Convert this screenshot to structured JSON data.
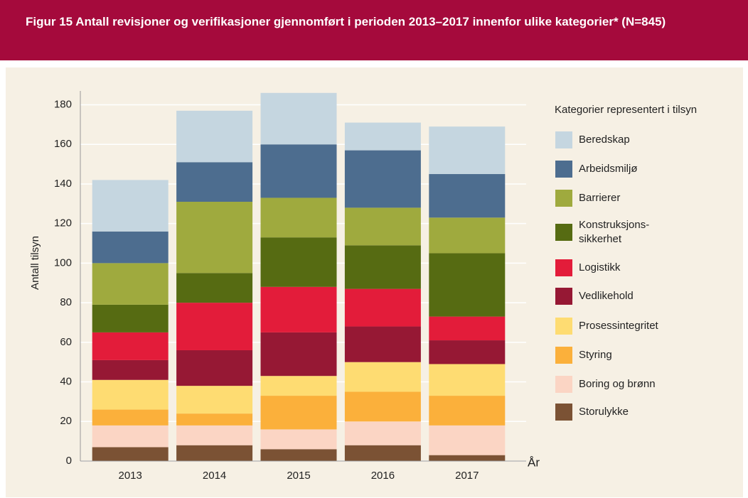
{
  "chart_data": {
    "type": "stacked-bar",
    "title": "Figur 15 Antall revisjoner og verifikasjoner gjennomført i perioden 2013–2017 innenfor ulike kategorier* (N=845)",
    "ylabel": "Antall tilsyn",
    "xlabel": "År",
    "legend_title": "Kategorier representert i tilsyn",
    "categories": [
      "2013",
      "2014",
      "2015",
      "2016",
      "2017"
    ],
    "ylim": [
      0,
      187
    ],
    "yticks": [
      0,
      20,
      40,
      60,
      80,
      100,
      120,
      140,
      160,
      180
    ],
    "grid": true,
    "series": [
      {
        "name": "Storulykke",
        "color": "#7b5234",
        "values": [
          7,
          8,
          6,
          8,
          3
        ]
      },
      {
        "name": "Boring og brønn",
        "color": "#fbd5c4",
        "values": [
          11,
          10,
          10,
          12,
          15
        ]
      },
      {
        "name": "Styring",
        "color": "#fbb03b",
        "values": [
          8,
          6,
          17,
          15,
          15
        ]
      },
      {
        "name": "Prosessintegritet",
        "color": "#fedc72",
        "values": [
          15,
          14,
          10,
          15,
          16
        ]
      },
      {
        "name": "Vedlikehold",
        "color": "#961834",
        "values": [
          10,
          18,
          22,
          18,
          12
        ]
      },
      {
        "name": "Logistikk",
        "color": "#e31c3a",
        "values": [
          14,
          24,
          23,
          19,
          12
        ]
      },
      {
        "name": "Konstruksjons-\nsikkerhet",
        "color": "#566b12",
        "values": [
          14,
          15,
          25,
          22,
          32
        ]
      },
      {
        "name": "Barrierer",
        "color": "#9faa3e",
        "values": [
          21,
          36,
          20,
          19,
          18
        ]
      },
      {
        "name": "Arbeidsmiljø",
        "color": "#4d6d8f",
        "values": [
          16,
          20,
          27,
          29,
          22
        ]
      },
      {
        "name": "Beredskap",
        "color": "#c5d6e0",
        "values": [
          26,
          26,
          26,
          14,
          24
        ]
      }
    ]
  }
}
